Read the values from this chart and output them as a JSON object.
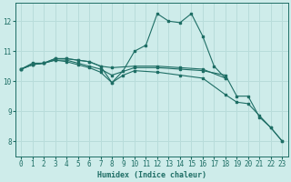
{
  "xlabel": "Humidex (Indice chaleur)",
  "background_color": "#ceecea",
  "grid_color": "#b8dcda",
  "line_color": "#1e6e65",
  "xlim": [
    -0.5,
    23.5
  ],
  "ylim": [
    7.5,
    12.6
  ],
  "yticks": [
    8,
    9,
    10,
    11,
    12
  ],
  "xticks": [
    0,
    1,
    2,
    3,
    4,
    5,
    6,
    7,
    8,
    9,
    10,
    11,
    12,
    13,
    14,
    15,
    16,
    17,
    18,
    19,
    20,
    21,
    22,
    23
  ],
  "series": [
    {
      "x": [
        0,
        1,
        2,
        3,
        4,
        5,
        6,
        7,
        8,
        9,
        10,
        11,
        12,
        13,
        14,
        15,
        16,
        17,
        18
      ],
      "y": [
        10.4,
        10.6,
        10.6,
        10.75,
        10.75,
        10.7,
        10.65,
        10.5,
        9.95,
        10.35,
        11.0,
        11.2,
        12.25,
        12.0,
        11.95,
        12.25,
        11.5,
        10.5,
        10.1
      ]
    },
    {
      "x": [
        0,
        1,
        2,
        3,
        4,
        5,
        6,
        7,
        8,
        10,
        12,
        14,
        16,
        18
      ],
      "y": [
        10.4,
        10.55,
        10.6,
        10.75,
        10.75,
        10.7,
        10.65,
        10.5,
        10.45,
        10.5,
        10.5,
        10.45,
        10.4,
        10.1
      ]
    },
    {
      "x": [
        0,
        1,
        2,
        3,
        4,
        5,
        6,
        7,
        8,
        10,
        12,
        14,
        16,
        18,
        19,
        20,
        21,
        22,
        23
      ],
      "y": [
        10.4,
        10.55,
        10.6,
        10.7,
        10.7,
        10.6,
        10.5,
        10.4,
        10.2,
        10.45,
        10.45,
        10.4,
        10.35,
        10.2,
        9.5,
        9.5,
        8.8,
        8.45,
        8.0
      ]
    },
    {
      "x": [
        0,
        1,
        2,
        3,
        4,
        5,
        6,
        7,
        8,
        9,
        10,
        12,
        14,
        16,
        18,
        19,
        20,
        21,
        22,
        23
      ],
      "y": [
        10.4,
        10.55,
        10.6,
        10.7,
        10.65,
        10.55,
        10.45,
        10.3,
        9.95,
        10.2,
        10.35,
        10.3,
        10.2,
        10.1,
        9.55,
        9.3,
        9.25,
        8.85,
        8.45,
        8.0
      ]
    }
  ]
}
